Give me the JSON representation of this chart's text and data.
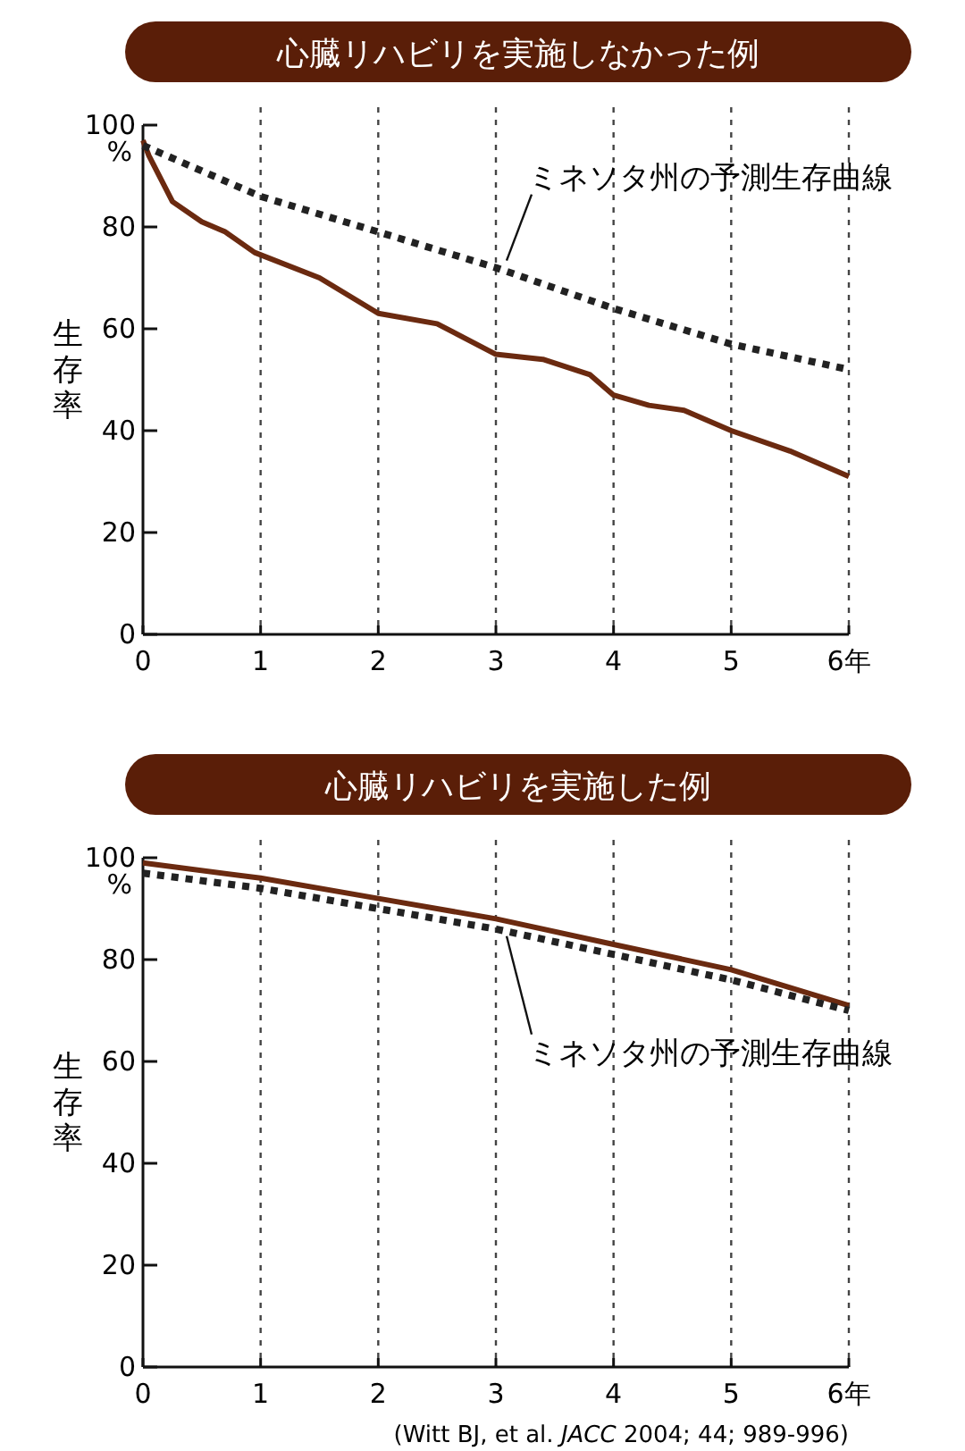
{
  "chart_data": [
    {
      "type": "line",
      "title": "心臓リハビリを実施しなかった例",
      "ylabel": "生存率",
      "annotations": [
        "%"
      ],
      "xlim": [
        0,
        6
      ],
      "ylim": [
        0,
        100
      ],
      "xticks": [
        0,
        1,
        2,
        3,
        4,
        5,
        {
          "value": 6,
          "label": "6年"
        }
      ],
      "yticks": [
        0,
        20,
        40,
        60,
        80,
        100
      ],
      "grid": "x",
      "series": [
        {
          "color": "#6b2a10",
          "line_style": "solid",
          "x": [
            0,
            0.05,
            0.25,
            0.5,
            0.7,
            0.95,
            1.5,
            2,
            2.5,
            3,
            3.4,
            3.8,
            4,
            4.3,
            4.6,
            5,
            5.5,
            6
          ],
          "values": [
            97,
            94,
            85,
            81,
            79,
            75,
            70,
            63,
            61,
            55,
            54,
            51,
            47,
            45,
            44,
            40,
            36,
            31
          ]
        },
        {
          "name": "ミネソタ州の予測生存曲線",
          "color": "#222222",
          "line_style": "dotted",
          "x": [
            0,
            1,
            2,
            3,
            4,
            5,
            6
          ],
          "values": [
            96,
            86,
            79,
            72,
            64,
            57,
            52
          ]
        }
      ]
    },
    {
      "type": "line",
      "title": "心臓リハビリを実施した例",
      "ylabel": "生存率",
      "annotations": [
        "%",
        "(Witt BJ, et al. *JACC* 2004; 44; 989-996)"
      ],
      "xlim": [
        0,
        6
      ],
      "ylim": [
        0,
        100
      ],
      "xticks": [
        0,
        1,
        2,
        3,
        4,
        5,
        {
          "value": 6,
          "label": "6年"
        }
      ],
      "yticks": [
        0,
        20,
        40,
        60,
        80,
        100
      ],
      "grid": "x",
      "series": [
        {
          "color": "#6b2a10",
          "line_style": "solid",
          "x": [
            0,
            1,
            2,
            3,
            4,
            5,
            6
          ],
          "values": [
            99,
            96,
            92,
            88,
            83,
            78,
            71
          ]
        },
        {
          "name": "ミネソタ州の予測生存曲線",
          "color": "#222222",
          "line_style": "dotted",
          "x": [
            0,
            1,
            2,
            3,
            4,
            5,
            6
          ],
          "values": [
            97,
            94,
            90,
            86,
            81,
            76,
            70
          ]
        }
      ]
    }
  ]
}
